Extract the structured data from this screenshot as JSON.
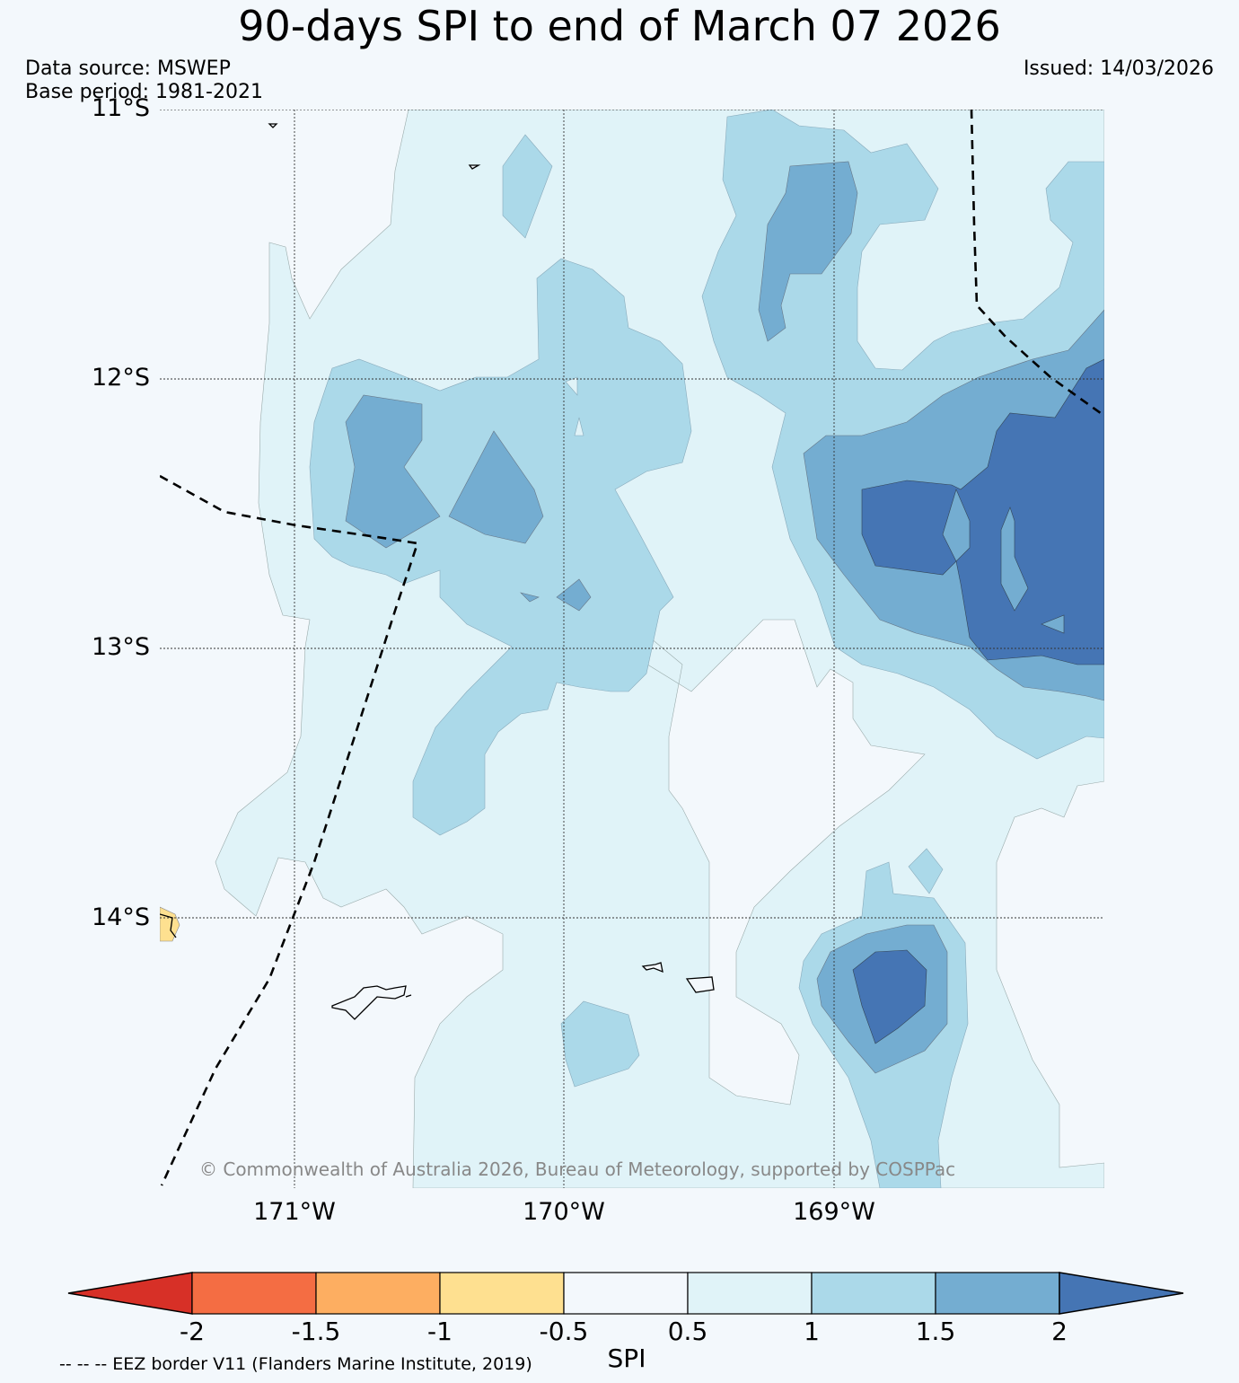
{
  "title": "90-days SPI to end of March 07 2026",
  "data_source": "Data source: MSWEP",
  "base_period": "Base period: 1981-2021",
  "issued": "Issued: 14/03/2026",
  "copyright": "© Commonwealth of Australia 2026, Bureau of Meteorology, supported by COSPPac",
  "map": {
    "lat_labels": [
      "11°S",
      "12°S",
      "13°S",
      "14°S"
    ],
    "lon_labels": [
      "171°W",
      "170°W",
      "169°W"
    ]
  },
  "colorbar": {
    "title": "SPI",
    "ticks": [
      "-2",
      "-1.5",
      "-1",
      "-0.5",
      "0.5",
      "1",
      "1.5",
      "2"
    ],
    "colors": [
      "#d73027",
      "#f46d43",
      "#fdae61",
      "#fee090",
      "#f3f8fc",
      "#e0f3f8",
      "#abd9e9",
      "#74add1",
      "#4575b4"
    ]
  },
  "legend_note": "-- -- -- EEZ border V11 (Flanders Marine Institute, 2019)"
}
